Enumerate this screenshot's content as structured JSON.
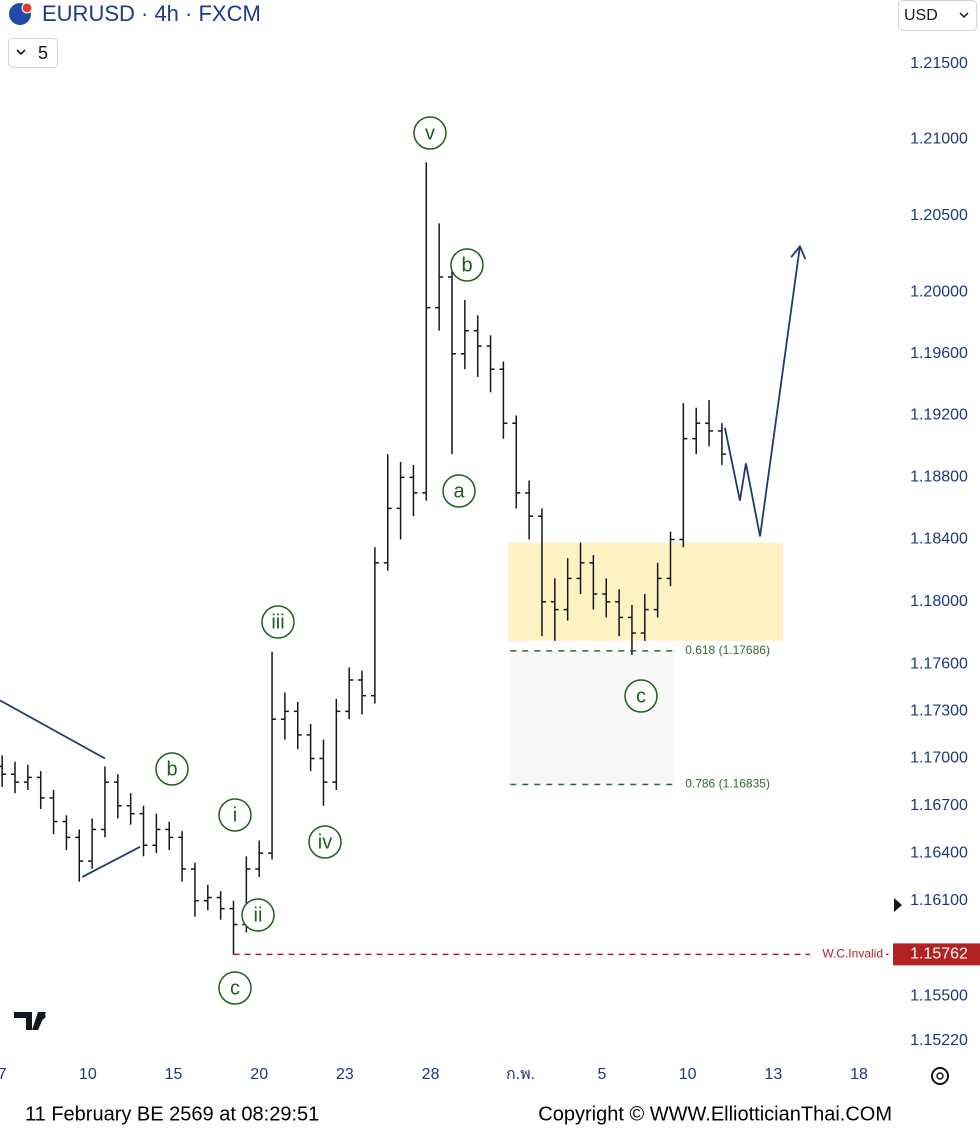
{
  "chart_data": {
    "type": "ohlc",
    "title": "EURUSD · 4h · FXCM",
    "interval_menu": "5",
    "currency": "USD",
    "log_scale": true,
    "color": "#131722",
    "x": [
      0,
      3,
      6,
      9,
      12,
      15,
      18,
      21,
      24,
      27,
      30,
      33,
      36,
      39,
      42,
      45,
      48,
      51,
      54,
      57,
      60,
      63,
      66,
      69,
      72,
      75,
      78,
      81,
      84,
      87,
      90,
      93,
      96,
      99,
      102,
      105,
      108,
      111,
      114,
      117,
      120,
      123,
      126,
      129,
      132,
      135,
      138,
      141,
      144,
      147,
      150,
      153,
      156,
      159,
      162,
      165,
      168
    ],
    "ohlc": [
      [
        1.1695,
        1.1702,
        1.1682,
        1.169
      ],
      [
        1.169,
        1.1698,
        1.1678,
        1.1685
      ],
      [
        1.1685,
        1.1696,
        1.168,
        1.1688
      ],
      [
        1.1688,
        1.1692,
        1.1668,
        1.1675
      ],
      [
        1.1675,
        1.168,
        1.1652,
        1.166
      ],
      [
        1.166,
        1.1664,
        1.1642,
        1.165
      ],
      [
        1.165,
        1.1655,
        1.1622,
        1.1635
      ],
      [
        1.1635,
        1.1662,
        1.163,
        1.1655
      ],
      [
        1.1655,
        1.1695,
        1.165,
        1.1685
      ],
      [
        1.1685,
        1.169,
        1.1662,
        1.167
      ],
      [
        1.167,
        1.1678,
        1.1658,
        1.1665
      ],
      [
        1.1665,
        1.167,
        1.1638,
        1.1645
      ],
      [
        1.1645,
        1.1665,
        1.164,
        1.1655
      ],
      [
        1.1655,
        1.166,
        1.1642,
        1.165
      ],
      [
        1.165,
        1.1654,
        1.1622,
        1.163
      ],
      [
        1.163,
        1.1634,
        1.16,
        1.161
      ],
      [
        1.161,
        1.162,
        1.1604,
        1.1612
      ],
      [
        1.1612,
        1.1616,
        1.1598,
        1.1605
      ],
      [
        1.1605,
        1.161,
        1.1576,
        1.1595
      ],
      [
        1.1595,
        1.1638,
        1.159,
        1.163
      ],
      [
        1.163,
        1.1648,
        1.1625,
        1.164
      ],
      [
        1.164,
        1.1768,
        1.1636,
        1.1725
      ],
      [
        1.1725,
        1.1742,
        1.1712,
        1.173
      ],
      [
        1.173,
        1.1736,
        1.1706,
        1.1715
      ],
      [
        1.1715,
        1.1722,
        1.1692,
        1.17
      ],
      [
        1.17,
        1.1712,
        1.167,
        1.1685
      ],
      [
        1.1685,
        1.1738,
        1.168,
        1.173
      ],
      [
        1.173,
        1.1758,
        1.1725,
        1.175
      ],
      [
        1.175,
        1.1756,
        1.1728,
        1.174
      ],
      [
        1.174,
        1.1835,
        1.1735,
        1.1825
      ],
      [
        1.1825,
        1.1895,
        1.182,
        1.186
      ],
      [
        1.186,
        1.189,
        1.184,
        1.188
      ],
      [
        1.188,
        1.1888,
        1.1855,
        1.187
      ],
      [
        1.187,
        1.2085,
        1.1865,
        1.199
      ],
      [
        1.199,
        1.2045,
        1.1975,
        1.201
      ],
      [
        1.201,
        1.2015,
        1.1895,
        1.196
      ],
      [
        1.196,
        1.1995,
        1.195,
        1.1975
      ],
      [
        1.1975,
        1.1985,
        1.1945,
        1.1965
      ],
      [
        1.1965,
        1.1972,
        1.1935,
        1.195
      ],
      [
        1.195,
        1.1955,
        1.1905,
        1.1915
      ],
      [
        1.1915,
        1.192,
        1.186,
        1.187
      ],
      [
        1.187,
        1.1878,
        1.184,
        1.1855
      ],
      [
        1.1855,
        1.186,
        1.1778,
        1.18
      ],
      [
        1.18,
        1.1815,
        1.1775,
        1.1795
      ],
      [
        1.1795,
        1.1828,
        1.1788,
        1.1815
      ],
      [
        1.1815,
        1.1838,
        1.1805,
        1.1825
      ],
      [
        1.1825,
        1.183,
        1.1795,
        1.1805
      ],
      [
        1.1805,
        1.1815,
        1.179,
        1.18
      ],
      [
        1.18,
        1.1808,
        1.1778,
        1.179
      ],
      [
        1.179,
        1.1798,
        1.1766,
        1.178
      ],
      [
        1.178,
        1.1805,
        1.1775,
        1.1795
      ],
      [
        1.1795,
        1.1825,
        1.179,
        1.1815
      ],
      [
        1.1815,
        1.1845,
        1.181,
        1.184
      ],
      [
        1.184,
        1.1928,
        1.1835,
        1.1905
      ],
      [
        1.1905,
        1.1925,
        1.1895,
        1.1915
      ],
      [
        1.1915,
        1.193,
        1.19,
        1.191
      ],
      [
        1.191,
        1.1915,
        1.1888,
        1.1895
      ]
    ],
    "xlim": [
      -0.5,
      208.4
    ],
    "xticks": [
      {
        "value": 0,
        "label": "7"
      },
      {
        "value": 20,
        "label": "10"
      },
      {
        "value": 40,
        "label": "15"
      },
      {
        "value": 60,
        "label": "20"
      },
      {
        "value": 80,
        "label": "23"
      },
      {
        "value": 100,
        "label": "28"
      },
      {
        "value": 121,
        "label": "ก.พ."
      },
      {
        "value": 140,
        "label": "5"
      },
      {
        "value": 160,
        "label": "10"
      },
      {
        "value": 180,
        "label": "13"
      },
      {
        "value": 200,
        "label": "18"
      }
    ],
    "ylim": [
      1.151,
      1.2192
    ],
    "yticks": [
      {
        "value": 1.215,
        "label": "1.21500"
      },
      {
        "value": 1.21,
        "label": "1.21000"
      },
      {
        "value": 1.205,
        "label": "1.20500"
      },
      {
        "value": 1.2,
        "label": "1.20000"
      },
      {
        "value": 1.196,
        "label": "1.19600"
      },
      {
        "value": 1.192,
        "label": "1.19200"
      },
      {
        "value": 1.188,
        "label": "1.18800"
      },
      {
        "value": 1.184,
        "label": "1.18400"
      },
      {
        "value": 1.18,
        "label": "1.18000"
      },
      {
        "value": 1.176,
        "label": "1.17600"
      },
      {
        "value": 1.173,
        "label": "1.17300"
      },
      {
        "value": 1.17,
        "label": "1.17000"
      },
      {
        "value": 1.167,
        "label": "1.16700"
      },
      {
        "value": 1.164,
        "label": "1.16400"
      },
      {
        "value": 1.161,
        "label": "1.16100"
      },
      {
        "value": 1.155,
        "label": "1.15500"
      },
      {
        "value": 1.1522,
        "label": "1.15220"
      }
    ],
    "zone": {
      "xlim": [
        118.1,
        182.3
      ],
      "ylim": [
        1.1775,
        1.1838
      ],
      "color": "#fff3c4"
    },
    "fib": {
      "xlim": [
        118.6,
        157.1
      ],
      "color": "#2e6b2e",
      "levels": [
        {
          "value": 1.17686,
          "label": "0.618 (1.17686)"
        },
        {
          "value": 1.16835,
          "label": "0.786 (1.16835)"
        }
      ]
    },
    "invalidation": {
      "value": 1.15762,
      "label": "W.C.Invalid",
      "xlim": [
        54,
        207.3
      ],
      "color": "#b22222"
    },
    "wave_labels": [
      "v",
      "b",
      "a",
      "iii",
      "b",
      "i",
      "iv",
      "ii",
      "c",
      "c"
    ],
    "wave_color": "#1e5e1e",
    "drawings": [
      {
        "color": "#1f3a6e",
        "x": [
          -0.5,
          24
        ],
        "y": [
          1.1737,
          1.17
        ]
      },
      {
        "color": "#1f3a6e",
        "x": [
          18.7,
          32.2
        ],
        "y": [
          1.1625,
          1.1644
        ]
      },
      {
        "color": "#1f3a6e",
        "x": [
          168.7,
          172.2,
          173.6,
          176.9,
          186.2
        ],
        "y": [
          1.1912,
          1.1865,
          1.1889,
          1.1842,
          1.203
        ],
        "arrow": true
      }
    ]
  },
  "footer": {
    "timestamp": "11 February BE 2569 at 08:29:51",
    "copyright": "Copyright © WWW.ElliotticianThai.COM"
  }
}
